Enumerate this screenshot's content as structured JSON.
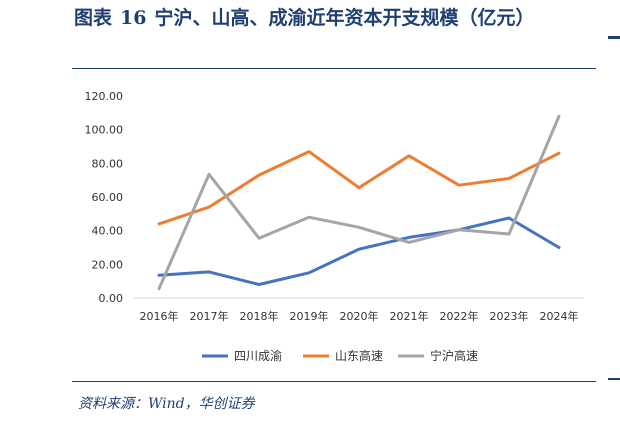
{
  "figure": {
    "label": "图表",
    "number": "16",
    "caption": "宁沪、山高、成渝近年资本开支规模（亿元）",
    "source": "资料来源：Wind，华创证券"
  },
  "colors": {
    "accent": "#1f3f73"
  },
  "chart_data": {
    "type": "line",
    "categories": [
      "2016年",
      "2017年",
      "2018年",
      "2019年",
      "2020年",
      "2021年",
      "2022年",
      "2023年",
      "2024年"
    ],
    "series": [
      {
        "name": "四川成渝",
        "color": "#4472c4",
        "values": [
          13.5,
          15.5,
          8.0,
          15.0,
          29.0,
          36.0,
          40.5,
          47.5,
          30.0
        ]
      },
      {
        "name": "山东高速",
        "color": "#ed7d31",
        "values": [
          44.0,
          54.0,
          73.0,
          87.0,
          65.5,
          84.5,
          67.0,
          71.0,
          86.0
        ]
      },
      {
        "name": "宁沪高速",
        "color": "#a5a5a5",
        "values": [
          5.5,
          73.5,
          35.5,
          48.0,
          42.0,
          33.0,
          40.5,
          38.0,
          108.0
        ]
      }
    ],
    "ylim": [
      0,
      120
    ],
    "yticks": [
      0,
      20,
      40,
      60,
      80,
      100,
      120
    ],
    "ytick_labels": [
      "0.00",
      "20.00",
      "40.00",
      "60.00",
      "80.00",
      "100.00",
      "120.00"
    ],
    "grid": false,
    "legend_position": "bottom"
  }
}
